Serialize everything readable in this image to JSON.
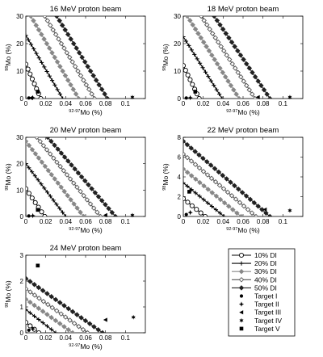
{
  "chart_data": [
    {
      "type": "line",
      "title": "16 MeV proton beam",
      "xlabel": "92-97Mo (%)",
      "ylabel": "98Mo (%)",
      "xlim": [
        0,
        0.12
      ],
      "ylim": [
        0,
        30
      ],
      "xticks": [
        "0",
        "0.02",
        "0.04",
        "0.06",
        "0.08",
        "0.1"
      ],
      "yticks": [
        "0",
        "10",
        "20",
        "30"
      ],
      "series": [
        {
          "name": "10% DI",
          "x": [
            0,
            0.015
          ],
          "y": [
            12.5,
            0
          ]
        },
        {
          "name": "20% DI",
          "x": [
            0,
            0.037
          ],
          "y": [
            23,
            0
          ]
        },
        {
          "name": "30% DI",
          "x": [
            0.005,
            0.053
          ],
          "y": [
            30,
            0
          ]
        },
        {
          "name": "40% DI",
          "x": [
            0.019,
            0.069
          ],
          "y": [
            30,
            0
          ]
        },
        {
          "name": "50% DI",
          "x": [
            0.031,
            0.082
          ],
          "y": [
            30,
            0
          ]
        }
      ],
      "targets": [
        {
          "name": "Target I",
          "x": 0.003,
          "y": 0.2
        },
        {
          "name": "Target II",
          "x": 0.007,
          "y": 0.3
        },
        {
          "name": "Target III",
          "x": 0.005,
          "y": 0.2
        },
        {
          "name": "Target IV",
          "x": 0.107,
          "y": 0.5
        },
        {
          "name": "Target V",
          "x": 0.012,
          "y": 2.5
        }
      ]
    },
    {
      "type": "line",
      "title": "18 MeV proton beam",
      "xlabel": "92-97Mo (%)",
      "ylabel": "98Mo (%)",
      "xlim": [
        0,
        0.12
      ],
      "ylim": [
        0,
        30
      ],
      "xticks": [
        "0",
        "0.02",
        "0.04",
        "0.06",
        "0.08",
        "0.1"
      ],
      "yticks": [
        "0",
        "10",
        "20",
        "30"
      ],
      "series": [
        {
          "name": "10% DI",
          "x": [
            0,
            0.016
          ],
          "y": [
            12,
            0
          ]
        },
        {
          "name": "20% DI",
          "x": [
            0,
            0.039
          ],
          "y": [
            22.5,
            0
          ]
        },
        {
          "name": "30% DI",
          "x": [
            0.004,
            0.056
          ],
          "y": [
            30,
            0
          ]
        },
        {
          "name": "40% DI",
          "x": [
            0.018,
            0.072
          ],
          "y": [
            30,
            0
          ]
        },
        {
          "name": "50% DI",
          "x": [
            0.031,
            0.087
          ],
          "y": [
            30,
            0
          ]
        }
      ],
      "targets": [
        {
          "name": "Target I",
          "x": 0.003,
          "y": 0.2
        },
        {
          "name": "Target II",
          "x": 0.007,
          "y": 0.3
        },
        {
          "name": "Target III",
          "x": 0.075,
          "y": 0.5
        },
        {
          "name": "Target IV",
          "x": 0.107,
          "y": 0.5
        },
        {
          "name": "Target V",
          "x": 0.012,
          "y": 2.5
        }
      ]
    },
    {
      "type": "line",
      "title": "20 MeV proton beam",
      "xlabel": "92-97Mo (%)",
      "ylabel": "98Mo (%)",
      "xlim": [
        0,
        0.12
      ],
      "ylim": [
        0,
        30
      ],
      "xticks": [
        "0",
        "0.02",
        "0.04",
        "0.06",
        "0.08",
        "0.1"
      ],
      "yticks": [
        "0",
        "10",
        "20",
        "30"
      ],
      "series": [
        {
          "name": "10% DI",
          "x": [
            0,
            0.019
          ],
          "y": [
            10.5,
            0
          ]
        },
        {
          "name": "20% DI",
          "x": [
            0,
            0.04
          ],
          "y": [
            20,
            0
          ]
        },
        {
          "name": "30% DI",
          "x": [
            0,
            0.058
          ],
          "y": [
            28.5,
            0
          ]
        },
        {
          "name": "40% DI",
          "x": [
            0.011,
            0.075
          ],
          "y": [
            30,
            0
          ]
        },
        {
          "name": "50% DI",
          "x": [
            0.022,
            0.09
          ],
          "y": [
            30,
            0
          ]
        }
      ],
      "targets": [
        {
          "name": "Target I",
          "x": 0.003,
          "y": 0.2
        },
        {
          "name": "Target II",
          "x": 0.007,
          "y": 0.3
        },
        {
          "name": "Target III",
          "x": 0.08,
          "y": 0.5
        },
        {
          "name": "Target IV",
          "x": 0.107,
          "y": 0.5
        },
        {
          "name": "Target V",
          "x": 0.012,
          "y": 2.5
        }
      ]
    },
    {
      "type": "line",
      "title": "22 MeV proton beam",
      "xlabel": "92-97Mo (%)",
      "ylabel": "98Mo (%)",
      "xlim": [
        0,
        0.12
      ],
      "ylim": [
        0,
        8
      ],
      "xticks": [
        "0",
        "0.02",
        "0.04",
        "0.06",
        "0.08",
        "0.1"
      ],
      "yticks": [
        "0",
        "2",
        "4",
        "6",
        "8"
      ],
      "series": [
        {
          "name": "10% DI",
          "x": [
            0,
            0.022
          ],
          "y": [
            1.8,
            0
          ]
        },
        {
          "name": "20% DI",
          "x": [
            0,
            0.041
          ],
          "y": [
            3.4,
            0
          ]
        },
        {
          "name": "30% DI",
          "x": [
            0,
            0.058
          ],
          "y": [
            4.8,
            0
          ]
        },
        {
          "name": "40% DI",
          "x": [
            0,
            0.073
          ],
          "y": [
            6.3,
            0
          ]
        },
        {
          "name": "50% DI",
          "x": [
            0,
            0.087
          ],
          "y": [
            7.6,
            0
          ]
        }
      ],
      "targets": [
        {
          "name": "Target I",
          "x": 0.003,
          "y": 0.2
        },
        {
          "name": "Target II",
          "x": 0.007,
          "y": 0.4
        },
        {
          "name": "Target III",
          "x": 0.082,
          "y": 0.7
        },
        {
          "name": "Target IV",
          "x": 0.107,
          "y": 0.6
        },
        {
          "name": "Target V",
          "x": 0.006,
          "y": 2.5
        }
      ]
    },
    {
      "type": "line",
      "title": "24 MeV proton beam",
      "xlabel": "92-97Mo (%)",
      "ylabel": "98Mo (%)",
      "xlim": [
        0,
        0.12
      ],
      "ylim": [
        0,
        3
      ],
      "xticks": [
        "0",
        "0.02",
        "0.04",
        "0.06",
        "0.08",
        "0.1"
      ],
      "yticks": [
        "0",
        "1",
        "2",
        "3"
      ],
      "series": [
        {
          "name": "10% DI",
          "x": [
            0,
            0.013
          ],
          "y": [
            0.4,
            0
          ]
        },
        {
          "name": "20% DI",
          "x": [
            0,
            0.03
          ],
          "y": [
            0.9,
            0
          ]
        },
        {
          "name": "30% DI",
          "x": [
            0,
            0.047
          ],
          "y": [
            1.3,
            0
          ]
        },
        {
          "name": "40% DI",
          "x": [
            0,
            0.062
          ],
          "y": [
            1.7,
            0
          ]
        },
        {
          "name": "50% DI",
          "x": [
            0,
            0.077
          ],
          "y": [
            2.1,
            0
          ]
        }
      ],
      "targets": [
        {
          "name": "Target I",
          "x": 0.003,
          "y": 0.1
        },
        {
          "name": "Target II",
          "x": 0.007,
          "y": 0.15
        },
        {
          "name": "Target III",
          "x": 0.08,
          "y": 0.5
        },
        {
          "name": "Target IV",
          "x": 0.108,
          "y": 0.6
        },
        {
          "name": "Target V",
          "x": 0.012,
          "y": 2.6
        }
      ]
    }
  ],
  "legend": {
    "items": [
      {
        "label": "10% DI",
        "kind": "line",
        "marker": "circle-open",
        "color": "#000000"
      },
      {
        "label": "20% DI",
        "kind": "line",
        "marker": "plus",
        "color": "#000000"
      },
      {
        "label": "30% DI",
        "kind": "line",
        "marker": "diamond",
        "color": "#888888"
      },
      {
        "label": "40% DI",
        "kind": "line",
        "marker": "diamond-open",
        "color": "#555555"
      },
      {
        "label": "50% DI",
        "kind": "line",
        "marker": "diamond-filled",
        "color": "#222222"
      },
      {
        "label": "Target I",
        "kind": "point",
        "marker": "dot",
        "color": "#000000"
      },
      {
        "label": "Target II",
        "kind": "point",
        "marker": "star4",
        "color": "#000000"
      },
      {
        "label": "Target III",
        "kind": "point",
        "marker": "tri-left",
        "color": "#000000"
      },
      {
        "label": "Target IV",
        "kind": "point",
        "marker": "star6",
        "color": "#000000"
      },
      {
        "label": "Target V",
        "kind": "point",
        "marker": "square",
        "color": "#000000"
      }
    ]
  }
}
